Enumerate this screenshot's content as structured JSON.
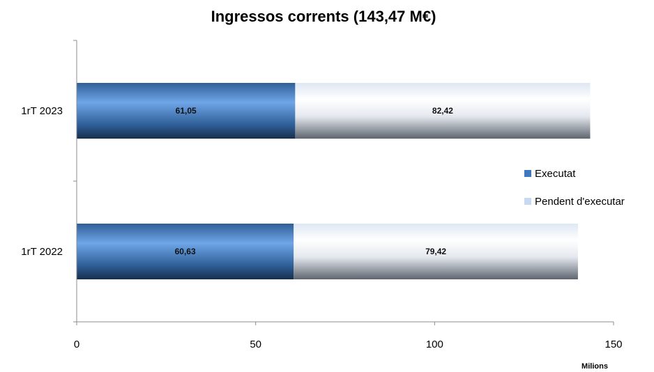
{
  "chart_data": {
    "type": "bar",
    "orientation": "horizontal",
    "stacked": true,
    "title": "Ingressos corrents (143,47 M€)",
    "xlabel": "Milions",
    "ylabel": "",
    "xlim": [
      0,
      150
    ],
    "xticks": [
      0,
      50,
      100,
      150
    ],
    "tick_labels": [
      "0",
      "50",
      "100",
      "150"
    ],
    "categories": [
      "1rT 2023",
      "1rT 2022"
    ],
    "series": [
      {
        "name": "Executat",
        "values": [
          61.05,
          60.63
        ],
        "labels": [
          "61,05",
          "60,63"
        ],
        "color": "#3f78be"
      },
      {
        "name": "Pendent d'executar",
        "values": [
          82.42,
          79.42
        ],
        "labels": [
          "82,42",
          "79,42"
        ],
        "color": "#c6d9f1"
      }
    ],
    "legend_position": "right",
    "grid": false
  }
}
